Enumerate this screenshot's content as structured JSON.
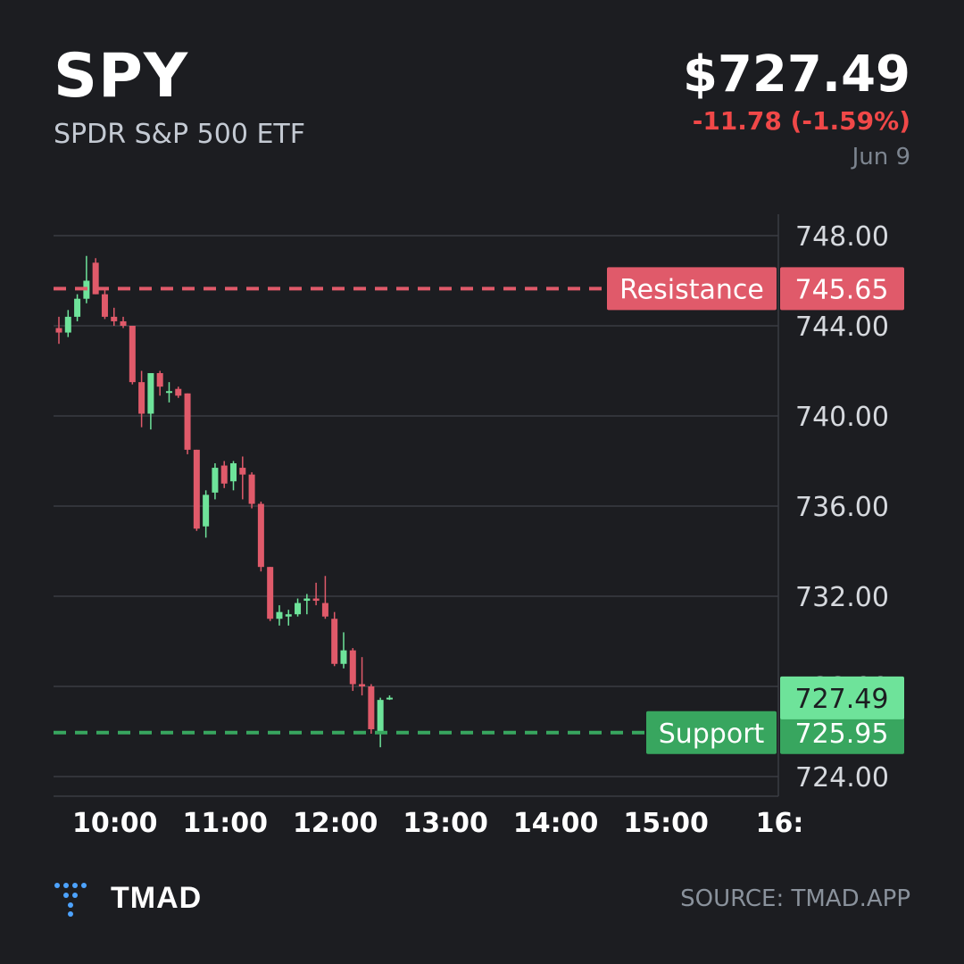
{
  "header": {
    "ticker": "SPY",
    "name": "SPDR S&P 500 ETF",
    "price": "$727.49",
    "change": "-11.78 (-1.59%)",
    "date": "Jun 9"
  },
  "colors": {
    "up": "#6ee39a",
    "down": "#e05a6a",
    "resistance": "#e05a6a",
    "support": "#38a65f",
    "current": "#6ee39a",
    "grid": "#3a3d43",
    "tick_text": "#d6d9de",
    "change_text": "#f04848"
  },
  "chart_data": {
    "type": "candlestick",
    "interval_minutes": 5,
    "x_ticks": [
      "10:00",
      "11:00",
      "12:00",
      "13:00",
      "14:00",
      "15:00",
      "16:"
    ],
    "y_ticks": [
      "748.00",
      "744.00",
      "740.00",
      "736.00",
      "732.00",
      "724.00"
    ],
    "y_tick_values": [
      748,
      744,
      740,
      736,
      732,
      724
    ],
    "y_tick_hidden_label": "728.00",
    "ylim": [
      723,
      749
    ],
    "xlim": [
      "09:30",
      "16:00"
    ],
    "candles": [
      {
        "t": "09:30",
        "o": 743.9,
        "h": 744.4,
        "l": 743.2,
        "c": 743.7
      },
      {
        "t": "09:35",
        "o": 743.7,
        "h": 744.7,
        "l": 743.5,
        "c": 744.4
      },
      {
        "t": "09:40",
        "o": 744.4,
        "h": 745.4,
        "l": 744.2,
        "c": 745.2
      },
      {
        "t": "09:45",
        "o": 745.2,
        "h": 747.1,
        "l": 745.0,
        "c": 746.0
      },
      {
        "t": "09:50",
        "o": 746.8,
        "h": 747.0,
        "l": 745.4,
        "c": 745.4
      },
      {
        "t": "09:55",
        "o": 745.4,
        "h": 745.6,
        "l": 744.3,
        "c": 744.4
      },
      {
        "t": "10:00",
        "o": 744.4,
        "h": 744.8,
        "l": 744.0,
        "c": 744.2
      },
      {
        "t": "10:05",
        "o": 744.2,
        "h": 744.4,
        "l": 743.9,
        "c": 744.0
      },
      {
        "t": "10:10",
        "o": 744.0,
        "h": 744.0,
        "l": 741.4,
        "c": 741.5
      },
      {
        "t": "10:15",
        "o": 741.5,
        "h": 742.0,
        "l": 739.5,
        "c": 740.1
      },
      {
        "t": "10:20",
        "o": 740.1,
        "h": 741.9,
        "l": 739.4,
        "c": 741.9
      },
      {
        "t": "10:25",
        "o": 741.9,
        "h": 742.0,
        "l": 740.9,
        "c": 741.3
      },
      {
        "t": "10:30",
        "o": 741.1,
        "h": 741.5,
        "l": 740.6,
        "c": 741.1
      },
      {
        "t": "10:35",
        "o": 741.2,
        "h": 741.3,
        "l": 740.8,
        "c": 740.9
      },
      {
        "t": "10:40",
        "o": 741.0,
        "h": 741.0,
        "l": 738.3,
        "c": 738.5
      },
      {
        "t": "10:45",
        "o": 738.5,
        "h": 738.5,
        "l": 734.9,
        "c": 735.0
      },
      {
        "t": "10:50",
        "o": 735.1,
        "h": 736.7,
        "l": 734.6,
        "c": 736.5
      },
      {
        "t": "10:55",
        "o": 736.6,
        "h": 737.9,
        "l": 736.3,
        "c": 737.7
      },
      {
        "t": "11:00",
        "o": 737.8,
        "h": 738.0,
        "l": 736.8,
        "c": 737.0
      },
      {
        "t": "11:05",
        "o": 737.1,
        "h": 738.0,
        "l": 736.7,
        "c": 737.9
      },
      {
        "t": "11:10",
        "o": 737.7,
        "h": 738.2,
        "l": 736.3,
        "c": 737.4
      },
      {
        "t": "11:15",
        "o": 737.4,
        "h": 737.5,
        "l": 735.9,
        "c": 736.1
      },
      {
        "t": "11:20",
        "o": 736.1,
        "h": 736.2,
        "l": 733.1,
        "c": 733.3
      },
      {
        "t": "11:25",
        "o": 733.3,
        "h": 733.3,
        "l": 730.9,
        "c": 731.0
      },
      {
        "t": "11:30",
        "o": 731.0,
        "h": 731.6,
        "l": 730.7,
        "c": 731.3
      },
      {
        "t": "11:35",
        "o": 731.1,
        "h": 731.4,
        "l": 730.7,
        "c": 731.2
      },
      {
        "t": "11:40",
        "o": 731.2,
        "h": 731.9,
        "l": 731.1,
        "c": 731.7
      },
      {
        "t": "11:45",
        "o": 731.8,
        "h": 732.1,
        "l": 731.2,
        "c": 731.9
      },
      {
        "t": "11:50",
        "o": 731.9,
        "h": 732.6,
        "l": 731.6,
        "c": 731.8
      },
      {
        "t": "11:55",
        "o": 731.7,
        "h": 732.9,
        "l": 731.0,
        "c": 731.1
      },
      {
        "t": "12:00",
        "o": 731.0,
        "h": 731.3,
        "l": 728.9,
        "c": 729.0
      },
      {
        "t": "12:05",
        "o": 729.0,
        "h": 730.4,
        "l": 728.8,
        "c": 729.6
      },
      {
        "t": "12:10",
        "o": 729.6,
        "h": 729.7,
        "l": 727.8,
        "c": 728.1
      },
      {
        "t": "12:15",
        "o": 728.1,
        "h": 729.3,
        "l": 727.6,
        "c": 728.0
      },
      {
        "t": "12:20",
        "o": 728.0,
        "h": 728.1,
        "l": 725.9,
        "c": 726.1
      },
      {
        "t": "12:25",
        "o": 726.0,
        "h": 727.5,
        "l": 725.3,
        "c": 727.4
      },
      {
        "t": "12:30",
        "o": 727.5,
        "h": 727.6,
        "l": 727.4,
        "c": 727.5
      }
    ],
    "levels": [
      {
        "label": "Resistance",
        "price": 745.65,
        "value_label": "745.65"
      },
      {
        "label": "Support",
        "price": 725.95,
        "value_label": "725.95"
      }
    ],
    "current_price": {
      "price": 727.49,
      "value_label": "727.49"
    },
    "grid": true
  },
  "footer": {
    "brand": "TMAD",
    "source": "SOURCE: TMAD.APP"
  }
}
